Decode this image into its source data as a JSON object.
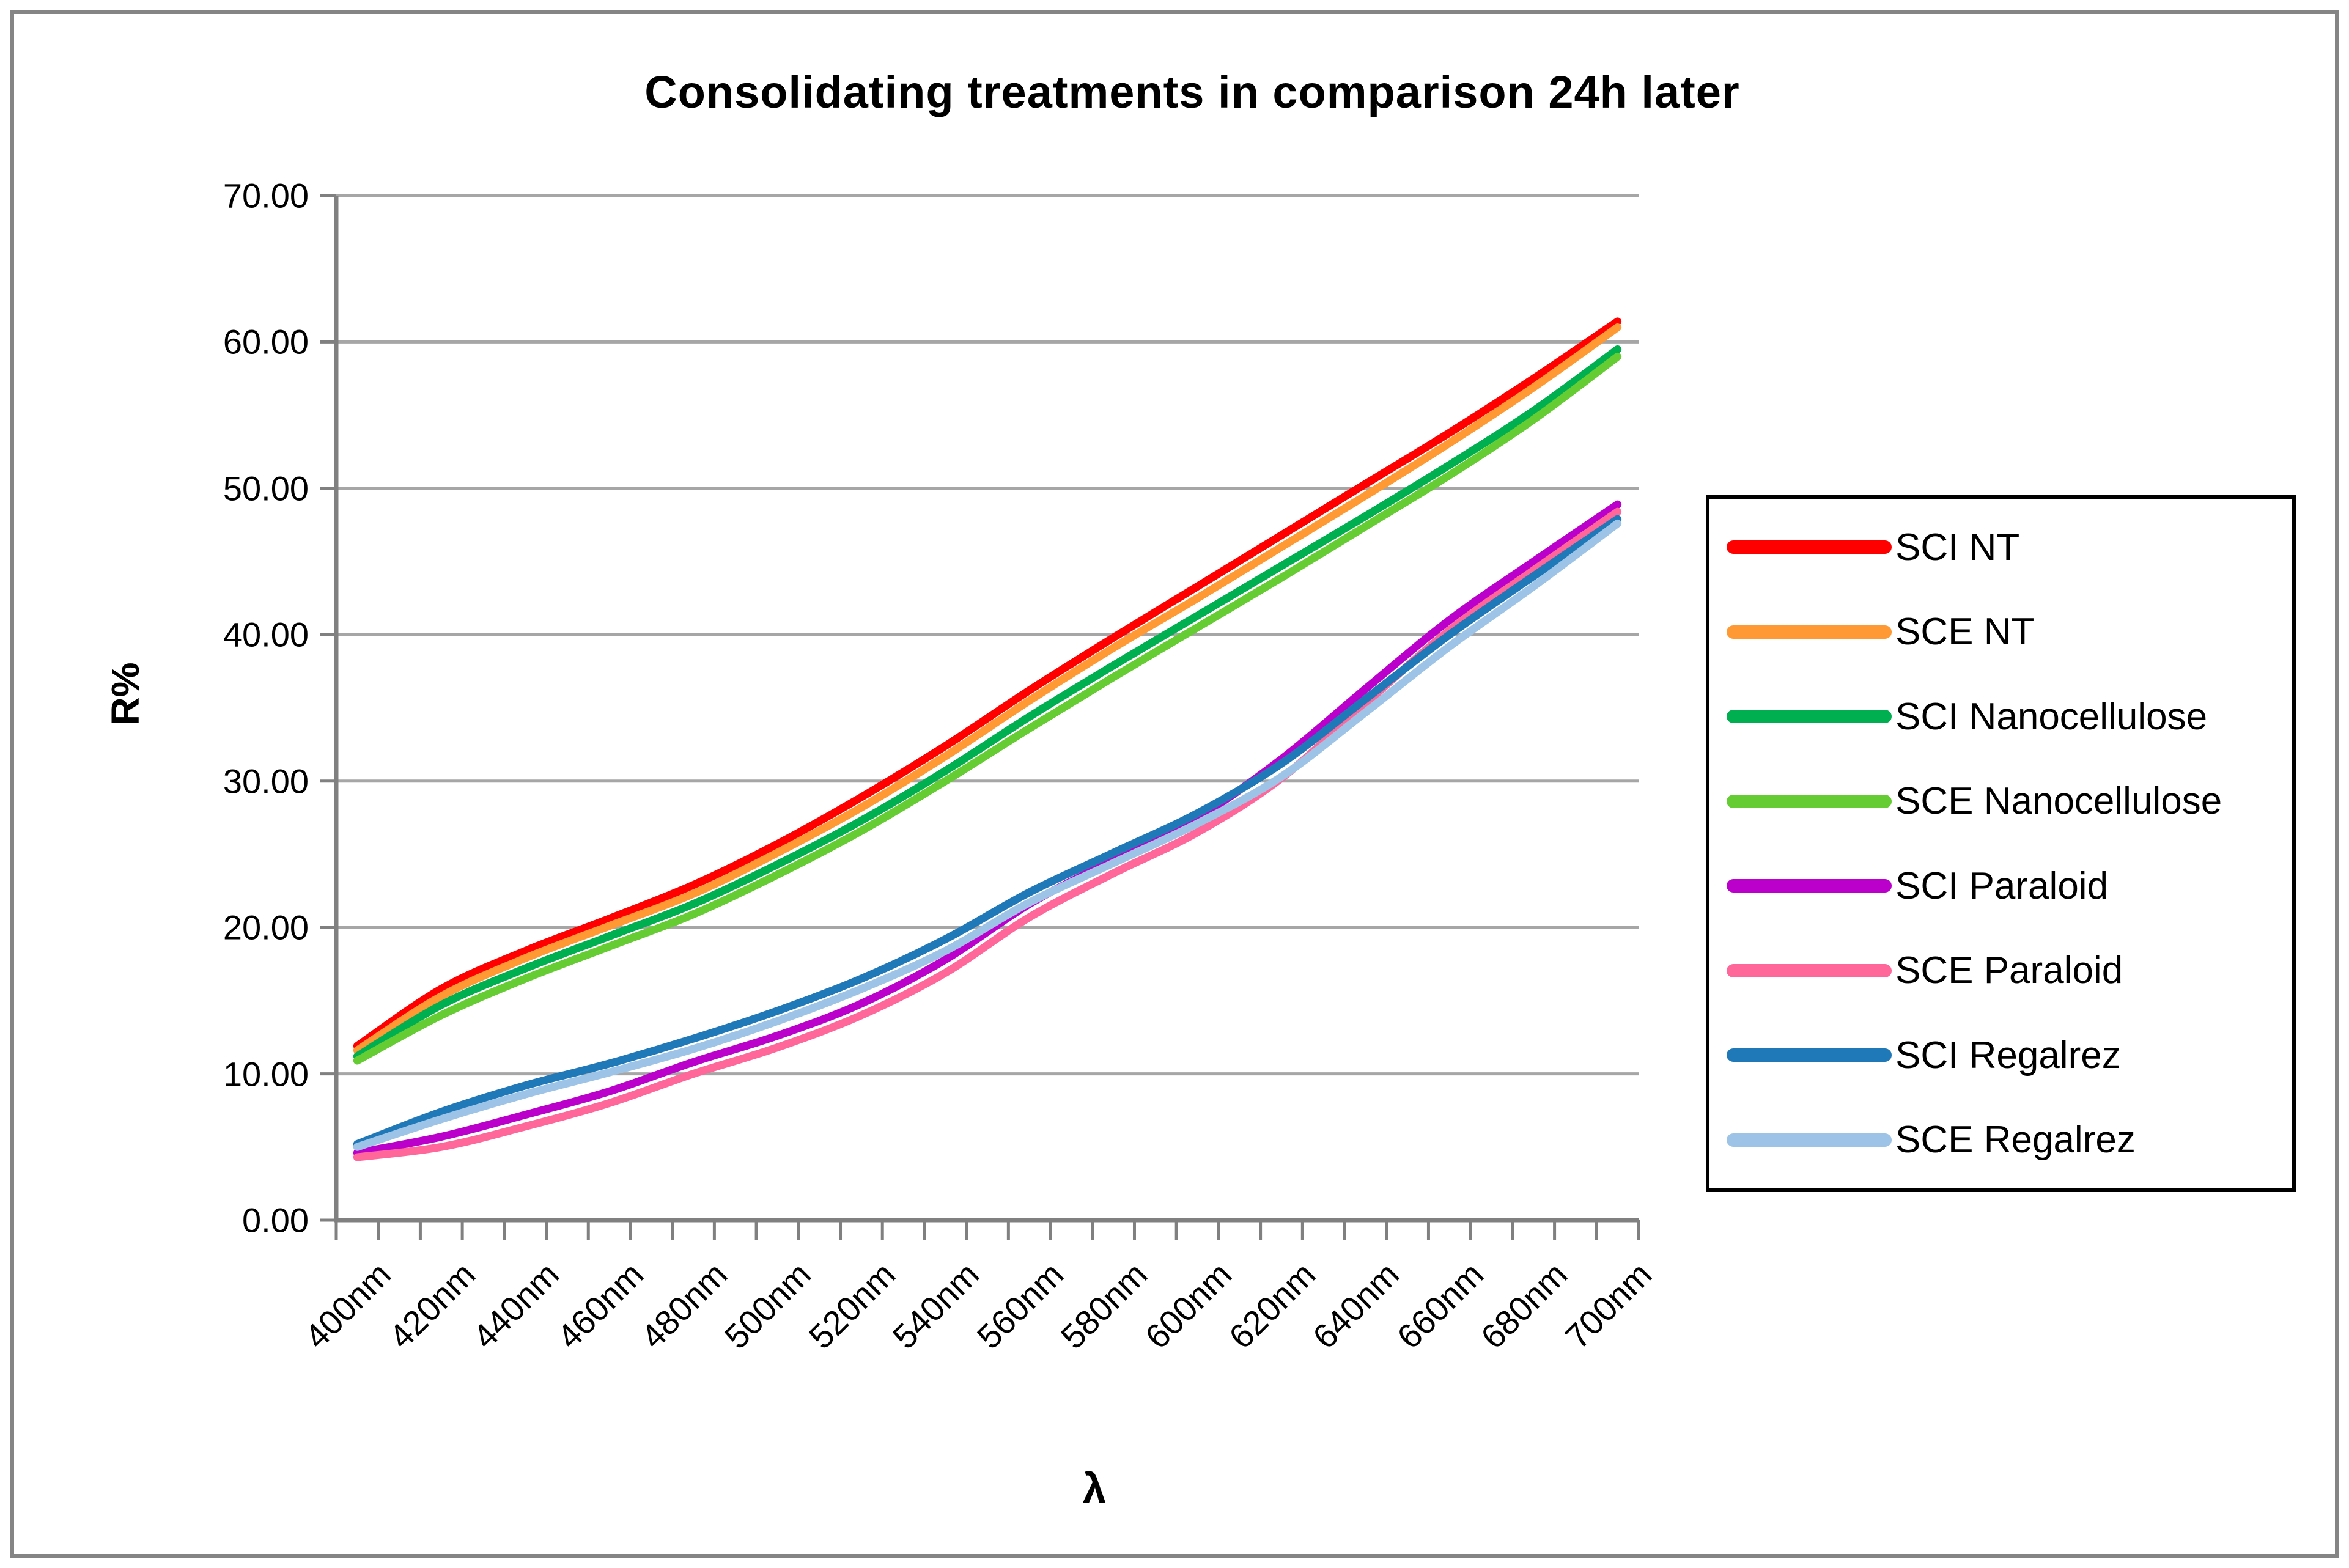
{
  "chart_data": {
    "type": "line",
    "title": "Consolidating treatments in comparison 24h later",
    "xlabel": "λ",
    "ylabel": "R%",
    "ylim": [
      0,
      70
    ],
    "ytick_step": 10,
    "ytick_labels": [
      "70.00",
      "60.00",
      "50.00",
      "40.00",
      "30.00",
      "20.00",
      "10.00",
      "0.00"
    ],
    "categories": [
      "400nm",
      "420nm",
      "440nm",
      "460nm",
      "480nm",
      "500nm",
      "520nm",
      "540nm",
      "560nm",
      "580nm",
      "600nm",
      "620nm",
      "640nm",
      "660nm",
      "680nm",
      "700nm"
    ],
    "grid": "horizontal",
    "legend_position": "right",
    "colors": {
      "axis": "#808080",
      "gridline": "#A6A6A6",
      "frame_border": "#858585",
      "legend_border": "#000000"
    },
    "series": [
      {
        "name": "SCI NT",
        "color": "#FF0000",
        "values": [
          11.9,
          15.8,
          18.4,
          20.6,
          22.9,
          25.7,
          28.9,
          32.4,
          36.2,
          39.8,
          43.3,
          46.8,
          50.3,
          53.8,
          57.5,
          61.4
        ]
      },
      {
        "name": "SCE NT",
        "color": "#FF9933",
        "values": [
          11.6,
          15.3,
          17.9,
          20.1,
          22.3,
          25.1,
          28.2,
          31.7,
          35.5,
          39.1,
          42.5,
          46.0,
          49.5,
          53.1,
          56.9,
          61.0
        ]
      },
      {
        "name": "SCI Nanocellulose",
        "color": "#00B050",
        "values": [
          11.2,
          14.7,
          17.2,
          19.4,
          21.6,
          24.3,
          27.3,
          30.7,
          34.4,
          37.9,
          41.3,
          44.7,
          48.1,
          51.6,
          55.3,
          59.5
        ]
      },
      {
        "name": "SCE Nanocellulose",
        "color": "#66CC33",
        "values": [
          10.9,
          14.0,
          16.5,
          18.7,
          20.9,
          23.6,
          26.6,
          30.0,
          33.6,
          37.1,
          40.5,
          43.9,
          47.4,
          50.9,
          54.7,
          59.0
        ]
      },
      {
        "name": "SCI Paraloid",
        "color": "#BB00CC",
        "values": [
          4.6,
          5.7,
          7.2,
          8.8,
          10.8,
          12.6,
          14.8,
          17.8,
          21.6,
          24.6,
          27.5,
          31.5,
          36.3,
          41.0,
          45.0,
          48.9
        ]
      },
      {
        "name": "SCE Paraloid",
        "color": "#FF6699",
        "values": [
          4.3,
          5.0,
          6.4,
          8.0,
          10.0,
          11.8,
          14.0,
          16.9,
          20.7,
          23.7,
          26.5,
          30.2,
          35.3,
          40.3,
          44.4,
          48.4
        ]
      },
      {
        "name": "SCI Regalrez",
        "color": "#1F78B8",
        "values": [
          5.2,
          7.4,
          9.2,
          10.7,
          12.4,
          14.3,
          16.5,
          19.2,
          22.4,
          25.1,
          27.8,
          31.2,
          35.6,
          40.0,
          44.0,
          47.9
        ]
      },
      {
        "name": "SCE Regalrez",
        "color": "#9DC3E6",
        "values": [
          5.0,
          6.9,
          8.6,
          10.1,
          11.7,
          13.6,
          15.8,
          18.4,
          21.7,
          24.4,
          27.1,
          30.3,
          34.7,
          39.2,
          43.3,
          47.6
        ]
      }
    ]
  }
}
